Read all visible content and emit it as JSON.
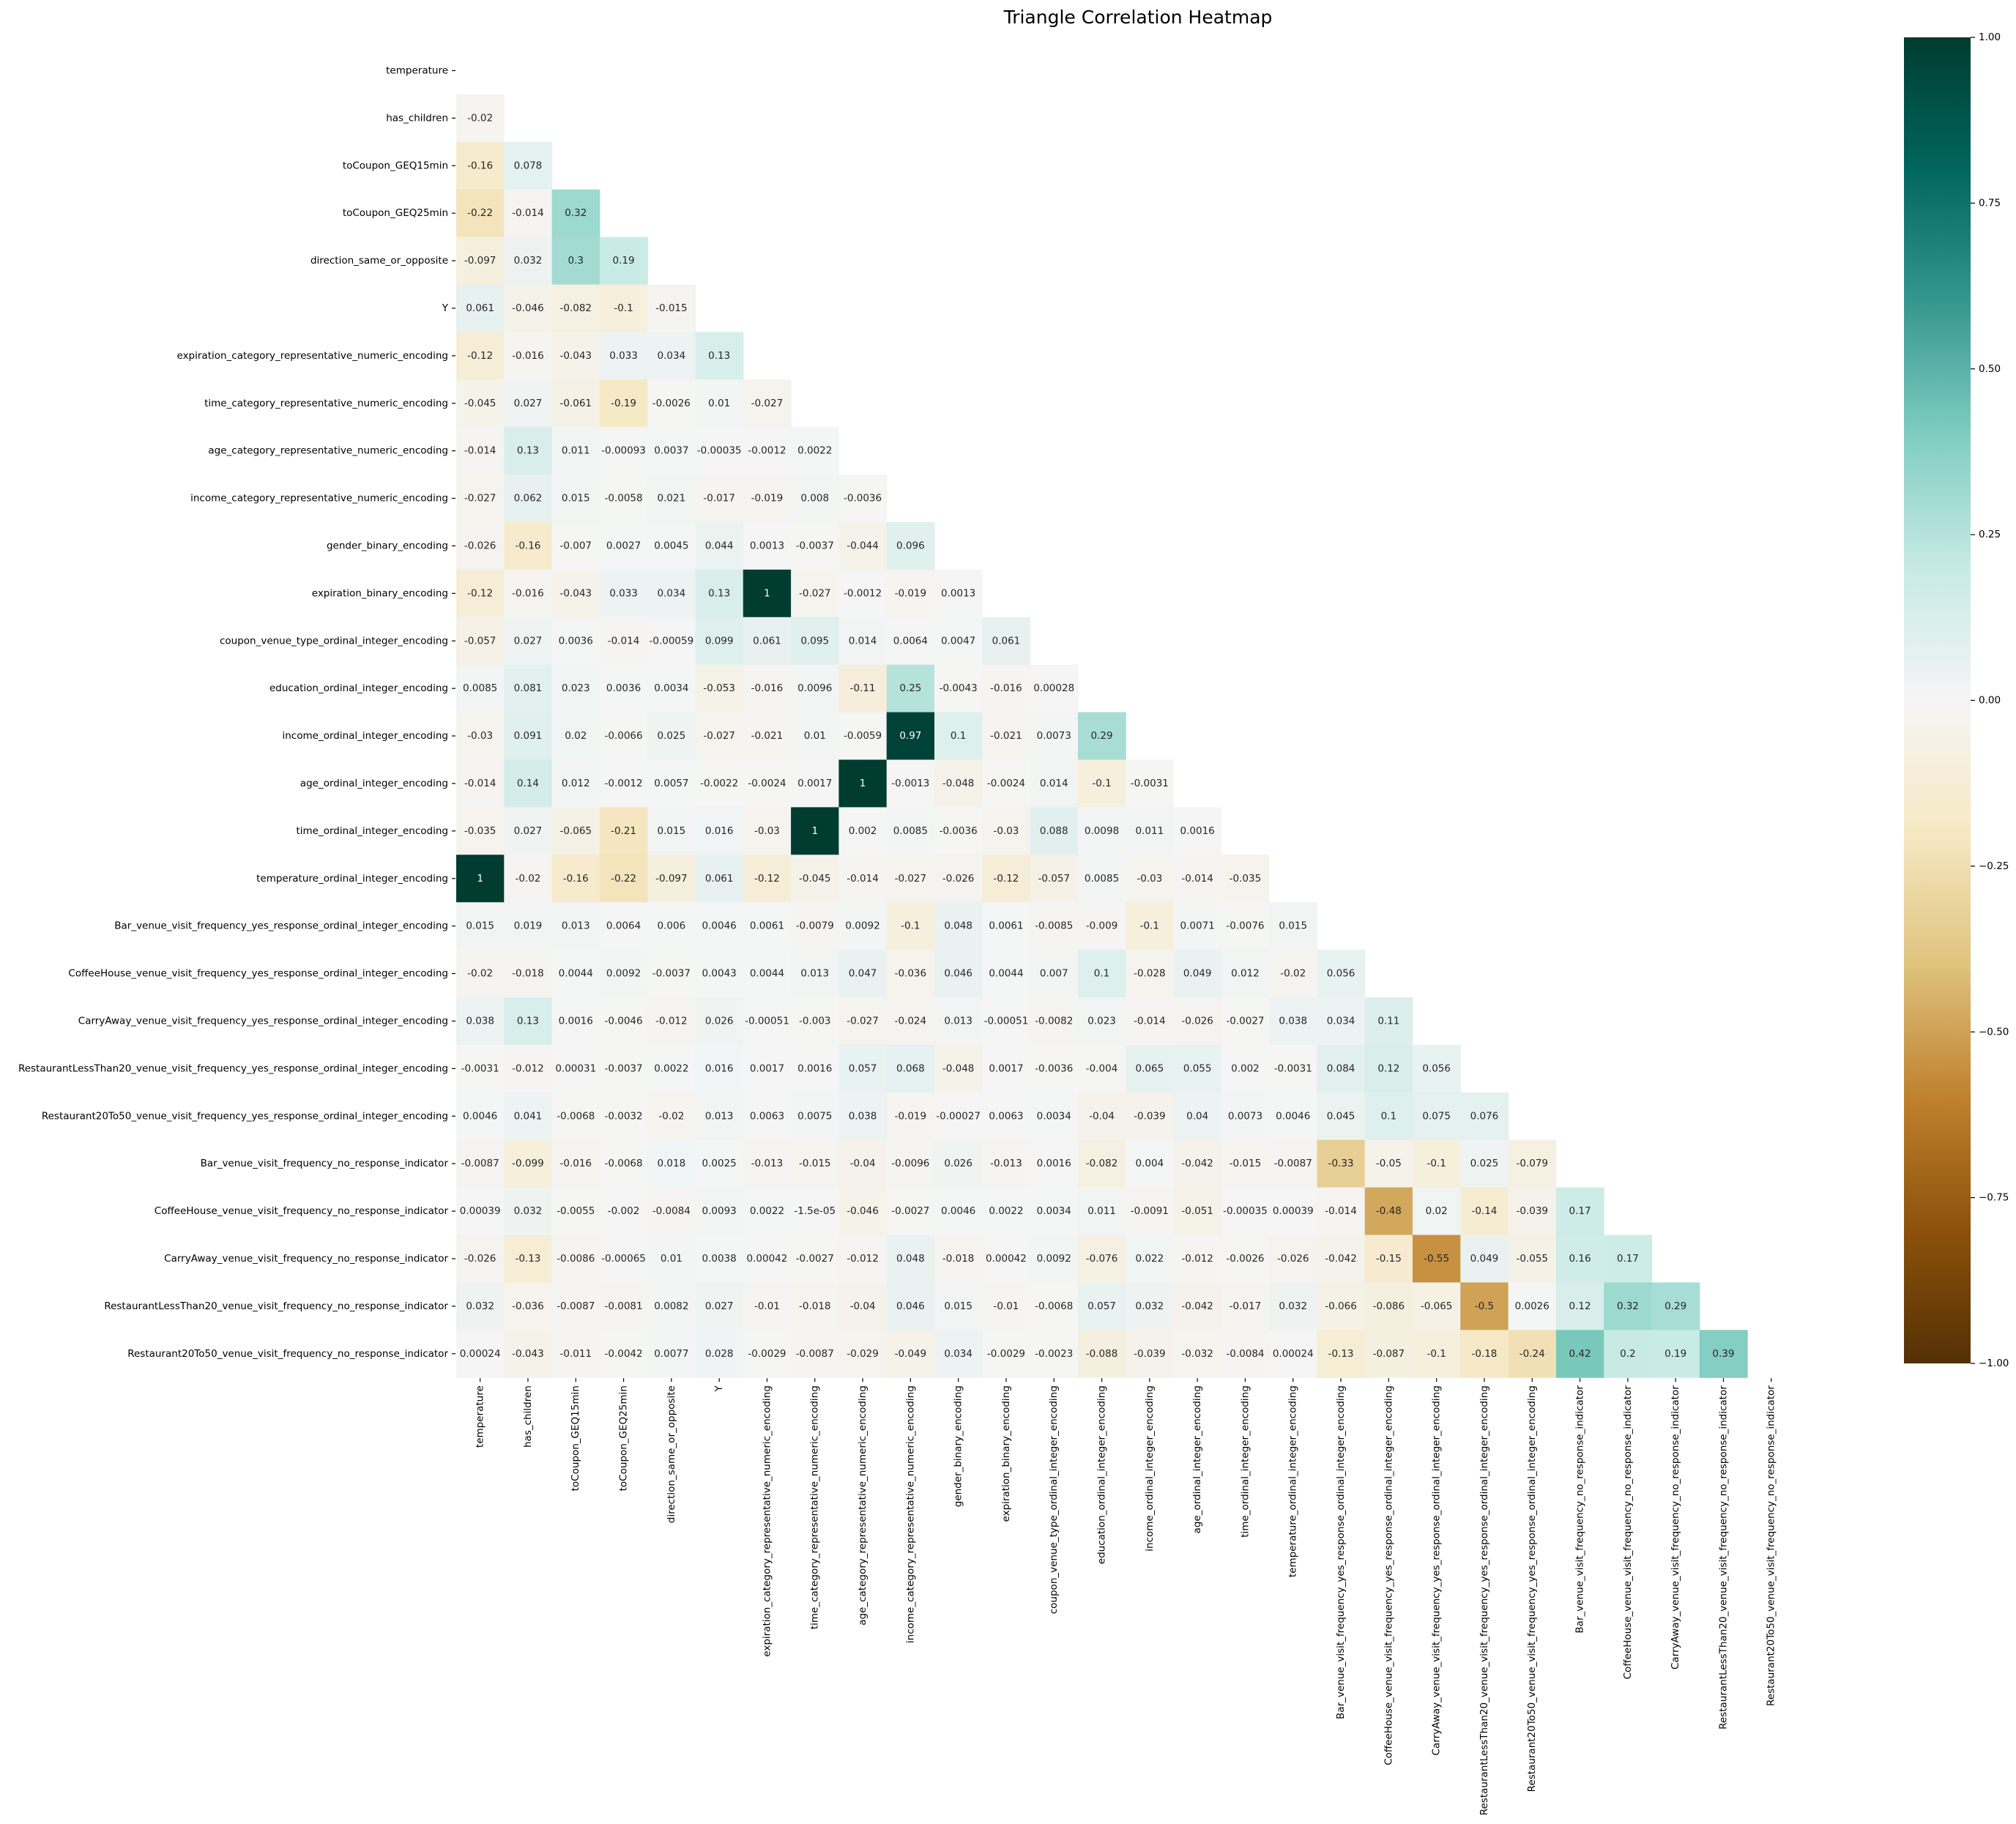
{
  "chart_data": {
    "type": "heatmap",
    "title": "Triangle Correlation Heatmap",
    "variables": [
      "temperature",
      "has_children",
      "toCoupon_GEQ15min",
      "toCoupon_GEQ25min",
      "direction_same_or_opposite",
      "Y",
      "expiration_category_representative_numeric_encoding",
      "time_category_representative_numeric_encoding",
      "age_category_representative_numeric_encoding",
      "income_category_representative_numeric_encoding",
      "gender_binary_encoding",
      "expiration_binary_encoding",
      "coupon_venue_type_ordinal_integer_encoding",
      "education_ordinal_integer_encoding",
      "income_ordinal_integer_encoding",
      "age_ordinal_integer_encoding",
      "time_ordinal_integer_encoding",
      "temperature_ordinal_integer_encoding",
      "Bar_venue_visit_frequency_yes_response_ordinal_integer_encoding",
      "CoffeeHouse_venue_visit_frequency_yes_response_ordinal_integer_encoding",
      "CarryAway_venue_visit_frequency_yes_response_ordinal_integer_encoding",
      "RestaurantLessThan20_venue_visit_frequency_yes_response_ordinal_integer_encoding",
      "Restaurant20To50_venue_visit_frequency_yes_response_ordinal_integer_encoding",
      "Bar_venue_visit_frequency_no_response_indicator",
      "CoffeeHouse_venue_visit_frequency_no_response_indicator",
      "CarryAway_venue_visit_frequency_no_response_indicator",
      "RestaurantLessThan20_venue_visit_frequency_no_response_indicator",
      "Restaurant20To50_venue_visit_frequency_no_response_indicator"
    ],
    "lower_triangle_labels": [
      [],
      [
        "-0.02"
      ],
      [
        "-0.16",
        "0.078"
      ],
      [
        "-0.22",
        "-0.014",
        "0.32"
      ],
      [
        "-0.097",
        "0.032",
        "0.3",
        "0.19"
      ],
      [
        "0.061",
        "-0.046",
        "-0.082",
        "-0.1",
        "-0.015"
      ],
      [
        "-0.12",
        "-0.016",
        "-0.043",
        "0.033",
        "0.034",
        "0.13"
      ],
      [
        "-0.045",
        "0.027",
        "-0.061",
        "-0.19",
        "-0.0026",
        "0.01",
        "-0.027"
      ],
      [
        "-0.014",
        "0.13",
        "0.011",
        "-0.00093",
        "0.0037",
        "-0.00035",
        "-0.0012",
        "0.0022"
      ],
      [
        "-0.027",
        "0.062",
        "0.015",
        "-0.0058",
        "0.021",
        "-0.017",
        "-0.019",
        "0.008",
        "-0.0036"
      ],
      [
        "-0.026",
        "-0.16",
        "-0.007",
        "0.0027",
        "0.0045",
        "0.044",
        "0.0013",
        "-0.0037",
        "-0.044",
        "0.096"
      ],
      [
        "-0.12",
        "-0.016",
        "-0.043",
        "0.033",
        "0.034",
        "0.13",
        "1",
        "-0.027",
        "-0.0012",
        "-0.019",
        "0.0013"
      ],
      [
        "-0.057",
        "0.027",
        "0.0036",
        "-0.014",
        "-0.00059",
        "0.099",
        "0.061",
        "0.095",
        "0.014",
        "0.0064",
        "0.0047",
        "0.061"
      ],
      [
        "0.0085",
        "0.081",
        "0.023",
        "0.0036",
        "0.0034",
        "-0.053",
        "-0.016",
        "0.0096",
        "-0.11",
        "0.25",
        "-0.0043",
        "-0.016",
        "0.00028"
      ],
      [
        "-0.03",
        "0.091",
        "0.02",
        "-0.0066",
        "0.025",
        "-0.027",
        "-0.021",
        "0.01",
        "-0.0059",
        "0.97",
        "0.1",
        "-0.021",
        "0.0073",
        "0.29"
      ],
      [
        "-0.014",
        "0.14",
        "0.012",
        "-0.0012",
        "0.0057",
        "-0.0022",
        "-0.0024",
        "0.0017",
        "1",
        "-0.0013",
        "-0.048",
        "-0.0024",
        "0.014",
        "-0.1",
        "-0.0031"
      ],
      [
        "-0.035",
        "0.027",
        "-0.065",
        "-0.21",
        "0.015",
        "0.016",
        "-0.03",
        "1",
        "0.002",
        "0.0085",
        "-0.0036",
        "-0.03",
        "0.088",
        "0.0098",
        "0.011",
        "0.0016"
      ],
      [
        "1",
        "-0.02",
        "-0.16",
        "-0.22",
        "-0.097",
        "0.061",
        "-0.12",
        "-0.045",
        "-0.014",
        "-0.027",
        "-0.026",
        "-0.12",
        "-0.057",
        "0.0085",
        "-0.03",
        "-0.014",
        "-0.035"
      ],
      [
        "0.015",
        "0.019",
        "0.013",
        "0.0064",
        "0.006",
        "0.0046",
        "0.0061",
        "-0.0079",
        "0.0092",
        "-0.1",
        "0.048",
        "0.0061",
        "-0.0085",
        "-0.009",
        "-0.1",
        "0.0071",
        "-0.0076",
        "0.015"
      ],
      [
        "-0.02",
        "-0.018",
        "0.0044",
        "0.0092",
        "-0.0037",
        "0.0043",
        "0.0044",
        "0.013",
        "0.047",
        "-0.036",
        "0.046",
        "0.0044",
        "0.007",
        "0.1",
        "-0.028",
        "0.049",
        "0.012",
        "-0.02",
        "0.056"
      ],
      [
        "0.038",
        "0.13",
        "0.0016",
        "-0.0046",
        "-0.012",
        "0.026",
        "-0.00051",
        "-0.003",
        "-0.027",
        "-0.024",
        "0.013",
        "-0.00051",
        "-0.0082",
        "0.023",
        "-0.014",
        "-0.026",
        "-0.0027",
        "0.038",
        "0.034",
        "0.11"
      ],
      [
        "-0.0031",
        "-0.012",
        "0.00031",
        "-0.0037",
        "0.0022",
        "0.016",
        "0.0017",
        "0.0016",
        "0.057",
        "0.068",
        "-0.048",
        "0.0017",
        "-0.0036",
        "-0.004",
        "0.065",
        "0.055",
        "0.002",
        "-0.0031",
        "0.084",
        "0.12",
        "0.056"
      ],
      [
        "0.0046",
        "0.041",
        "-0.0068",
        "-0.0032",
        "-0.02",
        "0.013",
        "0.0063",
        "0.0075",
        "0.038",
        "-0.019",
        "-0.00027",
        "0.0063",
        "0.0034",
        "-0.04",
        "-0.039",
        "0.04",
        "0.0073",
        "0.0046",
        "0.045",
        "0.1",
        "0.075",
        "0.076"
      ],
      [
        "-0.0087",
        "-0.099",
        "-0.016",
        "-0.0068",
        "0.018",
        "0.0025",
        "-0.013",
        "-0.015",
        "-0.04",
        "-0.0096",
        "0.026",
        "-0.013",
        "0.0016",
        "-0.082",
        "0.004",
        "-0.042",
        "-0.015",
        "-0.0087",
        "-0.33",
        "-0.05",
        "-0.1",
        "0.025",
        "-0.079"
      ],
      [
        "0.00039",
        "0.032",
        "-0.0055",
        "-0.002",
        "-0.0084",
        "0.0093",
        "0.0022",
        "-1.5e-05",
        "-0.046",
        "-0.0027",
        "0.0046",
        "0.0022",
        "0.0034",
        "0.011",
        "-0.0091",
        "-0.051",
        "-0.00035",
        "0.00039",
        "-0.014",
        "-0.48",
        "0.02",
        "-0.14",
        "-0.039",
        "0.17"
      ],
      [
        "-0.026",
        "-0.13",
        "-0.0086",
        "-0.00065",
        "0.01",
        "0.0038",
        "0.00042",
        "-0.0027",
        "-0.012",
        "0.048",
        "-0.018",
        "0.00042",
        "0.0092",
        "-0.076",
        "0.022",
        "-0.012",
        "-0.0026",
        "-0.026",
        "-0.042",
        "-0.15",
        "-0.55",
        "0.049",
        "-0.055",
        "0.16",
        "0.17"
      ],
      [
        "0.032",
        "-0.036",
        "-0.0087",
        "-0.0081",
        "0.0082",
        "0.027",
        "-0.01",
        "-0.018",
        "-0.04",
        "0.046",
        "0.015",
        "-0.01",
        "-0.0068",
        "0.057",
        "0.032",
        "-0.042",
        "-0.017",
        "0.032",
        "-0.066",
        "-0.086",
        "-0.065",
        "-0.5",
        "0.0026",
        "0.12",
        "0.32",
        "0.29"
      ],
      [
        "0.00024",
        "-0.043",
        "-0.011",
        "-0.0042",
        "0.0077",
        "0.028",
        "-0.0029",
        "-0.0087",
        "-0.029",
        "-0.049",
        "0.034",
        "-0.0029",
        "-0.0023",
        "-0.088",
        "-0.039",
        "-0.032",
        "-0.0084",
        "0.00024",
        "-0.13",
        "-0.087",
        "-0.1",
        "-0.18",
        "-0.24",
        "0.42",
        "0.2",
        "0.19",
        "0.39"
      ]
    ],
    "colorbar": {
      "colormap": "BrBG",
      "vmin": -1,
      "vmax": 1,
      "ticks": [
        "−1.00",
        "−0.75",
        "−0.50",
        "−0.25",
        "0.00",
        "0.25",
        "0.50",
        "0.75",
        "1.00"
      ]
    }
  }
}
